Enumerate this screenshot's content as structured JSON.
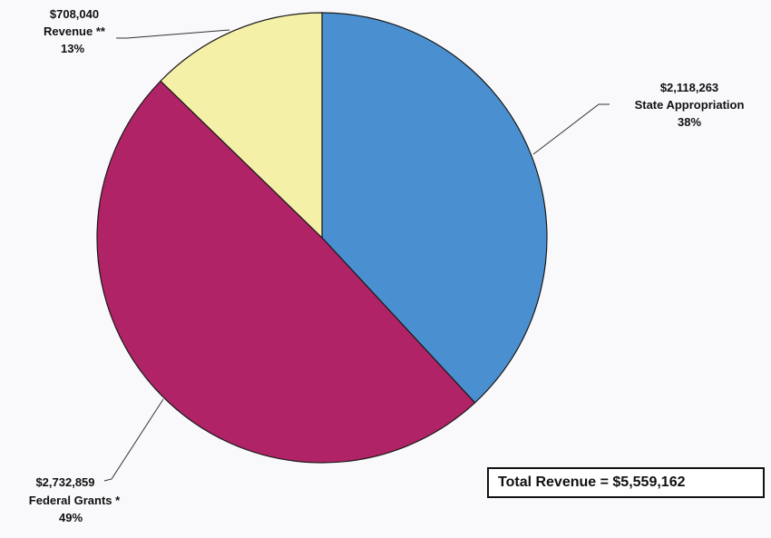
{
  "chart_data": {
    "type": "pie",
    "slices": [
      {
        "value_label": "$2,118,263",
        "name": "State Appropriation",
        "percent_label": "38%",
        "value": 2118263,
        "percent": 38,
        "color": "#4a90d0"
      },
      {
        "value_label": "$2,732,859",
        "name": "Federal Grants *",
        "percent_label": "49%",
        "value": 2732859,
        "percent": 49,
        "color": "#b02366"
      },
      {
        "value_label": "$708,040",
        "name": "Revenue **",
        "percent_label": "13%",
        "value": 708040,
        "percent": 13,
        "color": "#f4f0a8"
      }
    ],
    "total_label": "Total Revenue = $5,559,162",
    "total": 5559162,
    "start_angle": "12 o'clock",
    "direction": "clockwise"
  }
}
